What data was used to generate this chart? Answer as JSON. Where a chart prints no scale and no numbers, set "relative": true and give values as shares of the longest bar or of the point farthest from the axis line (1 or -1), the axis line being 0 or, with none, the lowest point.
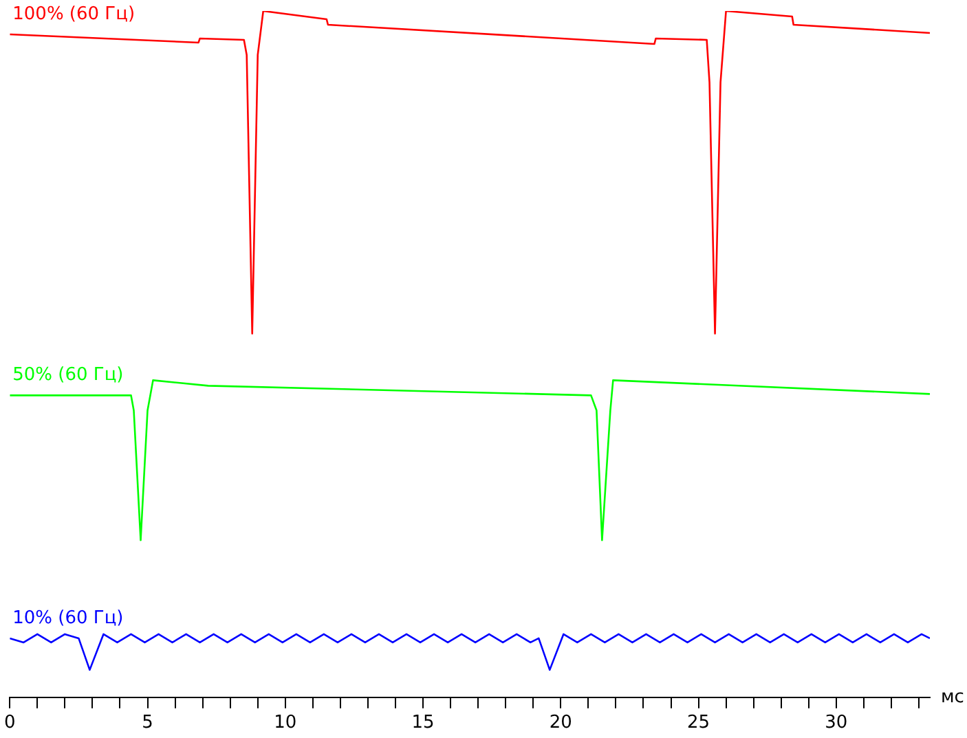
{
  "chart_data": {
    "type": "line",
    "relative": true,
    "xlabel": "мс",
    "xlim": [
      0,
      33.4
    ],
    "xticks": [
      0,
      {
        "value": 1,
        "label": null
      },
      {
        "value": 2,
        "label": null
      },
      {
        "value": 3,
        "label": null
      },
      {
        "value": 4,
        "label": null
      },
      5,
      {
        "value": 6,
        "label": null
      },
      {
        "value": 7,
        "label": null
      },
      {
        "value": 8,
        "label": null
      },
      {
        "value": 9,
        "label": null
      },
      10,
      {
        "value": 11,
        "label": null
      },
      {
        "value": 12,
        "label": null
      },
      {
        "value": 13,
        "label": null
      },
      {
        "value": 14,
        "label": null
      },
      15,
      {
        "value": 16,
        "label": null
      },
      {
        "value": 17,
        "label": null
      },
      {
        "value": 18,
        "label": null
      },
      {
        "value": 19,
        "label": null
      },
      20,
      {
        "value": 21,
        "label": null
      },
      {
        "value": 22,
        "label": null
      },
      {
        "value": 23,
        "label": null
      },
      {
        "value": 24,
        "label": null
      },
      25,
      {
        "value": 26,
        "label": null
      },
      {
        "value": 27,
        "label": null
      },
      {
        "value": 28,
        "label": null
      },
      {
        "value": 29,
        "label": null
      },
      30,
      {
        "value": 31,
        "label": null
      },
      {
        "value": 32,
        "label": null
      },
      {
        "value": 33,
        "label": null
      }
    ],
    "grid": false,
    "legend": false,
    "marker": "none",
    "line_style": "solid",
    "series": [
      {
        "name": "100% (60 Гц)",
        "color": "#ff0000",
        "x": [
          0,
          6.85,
          6.9,
          8.5,
          8.6,
          8.8,
          9.0,
          9.2,
          11.5,
          11.55,
          23.4,
          23.45,
          25.3,
          25.4,
          25.6,
          25.8,
          26.0,
          28.4,
          28.45,
          33.4
        ],
        "values": [
          0.966,
          0.954,
          0.96,
          0.958,
          0.936,
          0.53,
          0.936,
          1.0,
          0.988,
          0.98,
          0.952,
          0.96,
          0.958,
          0.896,
          0.53,
          0.896,
          1.0,
          0.992,
          0.98,
          0.968
        ]
      },
      {
        "name": "50% (60 Гц)",
        "color": "#00ff00",
        "x": [
          0,
          4.4,
          4.5,
          4.75,
          5.0,
          5.2,
          7.2,
          21.1,
          21.3,
          21.5,
          21.8,
          21.9,
          33.4
        ],
        "values": [
          0.44,
          0.44,
          0.418,
          0.229,
          0.418,
          0.462,
          0.454,
          0.44,
          0.418,
          0.229,
          0.418,
          0.462,
          0.442
        ]
      },
      {
        "name": "10% (60 Гц)",
        "color": "#0000ff",
        "x": [
          0,
          0.5,
          1,
          1.5,
          2,
          2.5,
          2.9,
          3.4,
          3.9,
          4.4,
          4.9,
          5.4,
          5.9,
          6.4,
          6.9,
          7.4,
          7.9,
          8.4,
          8.9,
          9.4,
          9.9,
          10.4,
          10.9,
          11.4,
          11.9,
          12.4,
          12.9,
          13.4,
          13.9,
          14.4,
          14.9,
          15.4,
          15.9,
          16.4,
          16.9,
          17.4,
          17.9,
          18.4,
          18.9,
          19.2,
          19.6,
          20.1,
          20.6,
          21.1,
          21.6,
          22.1,
          22.6,
          23.1,
          23.6,
          24.1,
          24.6,
          25.1,
          25.6,
          26.1,
          26.6,
          27.1,
          27.6,
          28.1,
          28.6,
          29.1,
          29.6,
          30.1,
          30.6,
          31.1,
          31.6,
          32.1,
          32.6,
          33.1,
          33.4
        ],
        "values": [
          0.086,
          0.08,
          0.092,
          0.08,
          0.092,
          0.086,
          0.04,
          0.092,
          0.08,
          0.092,
          0.08,
          0.092,
          0.08,
          0.092,
          0.08,
          0.092,
          0.08,
          0.092,
          0.08,
          0.092,
          0.08,
          0.092,
          0.08,
          0.092,
          0.08,
          0.092,
          0.08,
          0.092,
          0.08,
          0.092,
          0.08,
          0.092,
          0.08,
          0.092,
          0.08,
          0.092,
          0.08,
          0.092,
          0.08,
          0.086,
          0.04,
          0.092,
          0.08,
          0.092,
          0.08,
          0.092,
          0.08,
          0.092,
          0.08,
          0.092,
          0.08,
          0.092,
          0.08,
          0.092,
          0.08,
          0.092,
          0.08,
          0.092,
          0.08,
          0.092,
          0.08,
          0.092,
          0.08,
          0.092,
          0.08,
          0.092,
          0.08,
          0.092,
          0.086
        ]
      }
    ]
  }
}
